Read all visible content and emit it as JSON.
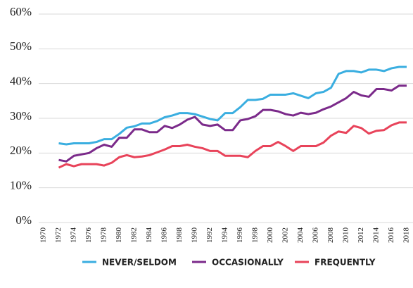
{
  "chart_data": {
    "type": "line",
    "x": [
      1972,
      1973,
      1974,
      1975,
      1976,
      1977,
      1978,
      1979,
      1980,
      1981,
      1982,
      1983,
      1984,
      1985,
      1986,
      1987,
      1988,
      1989,
      1990,
      1991,
      1992,
      1993,
      1994,
      1995,
      1996,
      1997,
      1998,
      1999,
      2000,
      2001,
      2002,
      2003,
      2004,
      2005,
      2006,
      2007,
      2008,
      2009,
      2010,
      2011,
      2012,
      2013,
      2014,
      2015,
      2016,
      2017,
      2018
    ],
    "series": [
      {
        "name": "NEVER/SELDOM",
        "color": "#3aaee0",
        "values": [
          22.8,
          22.5,
          22.8,
          22.8,
          22.8,
          23.2,
          24,
          24,
          25.5,
          27.3,
          27.7,
          28.5,
          28.5,
          29.2,
          30.3,
          30.8,
          31.5,
          31.5,
          31.2,
          30.5,
          29.8,
          29.4,
          31.5,
          31.5,
          33.2,
          35.3,
          35.3,
          35.6,
          36.8,
          36.8,
          36.8,
          37.2,
          36.5,
          35.8,
          37.2,
          37.6,
          38.8,
          42.8,
          43.6,
          43.6,
          43.2,
          44,
          44,
          43.6,
          44.4,
          44.8,
          44.8
        ]
      },
      {
        "name": "OCCASIONALLY",
        "color": "#7b2a8a",
        "values": [
          18,
          17.6,
          19.2,
          19.6,
          20,
          21.4,
          22.4,
          21.8,
          24.4,
          24.4,
          26.8,
          26.8,
          26,
          26,
          27.8,
          27.2,
          28.2,
          29.6,
          30.4,
          28.2,
          27.8,
          28.2,
          26.6,
          26.6,
          29.4,
          29.8,
          30.6,
          32.4,
          32.4,
          32,
          31.2,
          30.8,
          31.6,
          31.2,
          31.6,
          32.6,
          33.4,
          34.6,
          35.8,
          37.6,
          36.6,
          36.2,
          38.4,
          38.4,
          38,
          39.4,
          39.4
        ]
      },
      {
        "name": "FREQUENTLY",
        "color": "#e8435a",
        "values": [
          15.8,
          16.8,
          16.2,
          16.8,
          16.8,
          16.8,
          16.4,
          17.2,
          18.8,
          19.4,
          18.8,
          19,
          19.4,
          20.2,
          21,
          22,
          22,
          22.4,
          21.8,
          21.4,
          20.6,
          20.6,
          19.2,
          19.2,
          19.2,
          18.8,
          20.6,
          22,
          22,
          23.2,
          22,
          20.6,
          22,
          22,
          22,
          23,
          25,
          26.2,
          25.8,
          27.8,
          27.2,
          25.6,
          26.4,
          26.6,
          28,
          28.8,
          28.8
        ]
      }
    ],
    "xlim": [
      1970,
      2018
    ],
    "xticks": [
      1970,
      1972,
      1974,
      1976,
      1978,
      1980,
      1982,
      1984,
      1986,
      1988,
      1990,
      1992,
      1994,
      1996,
      1998,
      2000,
      2002,
      2004,
      2006,
      2008,
      2010,
      2012,
      2014,
      2016,
      2018
    ],
    "ylim": [
      0,
      60
    ],
    "yticks": [
      {
        "value": 0,
        "label": "0%"
      },
      {
        "value": 10,
        "label": "10%"
      },
      {
        "value": 20,
        "label": "20%"
      },
      {
        "value": 30,
        "label": "30%"
      },
      {
        "value": 40,
        "label": "40%"
      },
      {
        "value": 50,
        "label": "50%"
      },
      {
        "value": 60,
        "label": "60%"
      }
    ],
    "grid": true,
    "legend": "bottom"
  }
}
